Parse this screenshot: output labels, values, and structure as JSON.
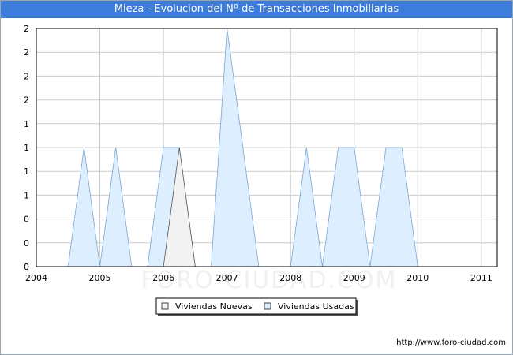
{
  "title": "Mieza - Evolucion del Nº de Transacciones Inmobiliarias",
  "footer_url": "http://www.foro-ciudad.com",
  "watermark": "FORO-CIUDAD.COM",
  "colors": {
    "title_bg": "#3c7dd9",
    "nuevas_fill": "#f2f2f2",
    "nuevas_stroke": "#555555",
    "usadas_fill": "#ddeeff",
    "usadas_stroke": "#7aa6d6",
    "grid": "#cccccc"
  },
  "chart_data": {
    "type": "area",
    "title": "Mieza - Evolucion del Nº de Transacciones Inmobiliarias",
    "xlabel": "",
    "ylabel": "",
    "xlim": [
      2004,
      2011.25
    ],
    "ylim": [
      0,
      2
    ],
    "x_tick_labels": [
      "2004",
      "2005",
      "2006",
      "2007",
      "2008",
      "2009",
      "2010",
      "2011"
    ],
    "y_tick_labels": [
      "0",
      "0",
      "0",
      "1",
      "1",
      "1",
      "1",
      "2",
      "2",
      "2",
      "2"
    ],
    "grid": true,
    "legend_position": "bottom",
    "series": [
      {
        "name": "Viviendas Nuevas",
        "x": [
          2006.0,
          2006.25,
          2006.5
        ],
        "y": [
          0,
          1,
          0
        ]
      },
      {
        "name": "Viviendas Usadas",
        "x": [
          2004.5,
          2004.75,
          2005.0,
          2005.25,
          2005.5,
          2005.75,
          2006.0,
          2006.25,
          2006.5,
          2006.75,
          2007.0,
          2007.25,
          2007.5,
          2007.75,
          2008.0,
          2008.25,
          2008.5,
          2008.75,
          2009.0,
          2009.25,
          2009.5,
          2009.75,
          2010.0
        ],
        "y": [
          0,
          1,
          0,
          1,
          0,
          0,
          1,
          1,
          0,
          0,
          2,
          1,
          0,
          0,
          0,
          1,
          0,
          1,
          1,
          0,
          1,
          1,
          0
        ]
      }
    ]
  }
}
